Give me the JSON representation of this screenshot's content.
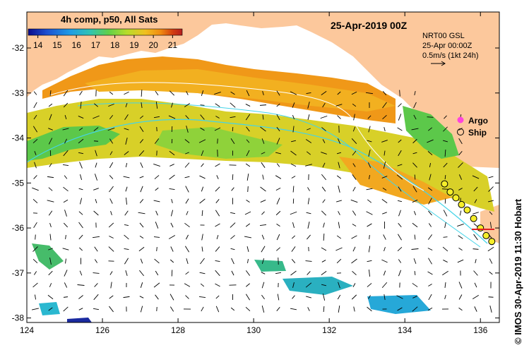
{
  "map": {
    "date_title": "25-Apr-2019 00Z",
    "product_label": "4h comp, p50, All Sats",
    "colorbar": {
      "ticks": [
        "14",
        "15",
        "16",
        "17",
        "18",
        "19",
        "20",
        "21"
      ],
      "min": 13.5,
      "max": 21.5,
      "colors": [
        "#0a0a8c",
        "#1e4fd0",
        "#1f9be6",
        "#2fc3b4",
        "#5fd04a",
        "#b6dc2a",
        "#f0c020",
        "#f08a10",
        "#d23c10",
        "#b41e1e"
      ]
    },
    "current_info": {
      "line1": "NRT00 GSL",
      "line2": "25-Apr 00:00Z",
      "line3": "0.5m/s (1kt 24h)"
    },
    "legend": {
      "argo": "Argo",
      "ship": "Ship"
    },
    "lon_ticks": [
      "124",
      "126",
      "128",
      "130",
      "132",
      "134",
      "136"
    ],
    "lat_ticks": [
      "-32",
      "-33",
      "-34",
      "-35",
      "-36",
      "-37",
      "-38"
    ],
    "lon_range": [
      124,
      136.5
    ],
    "lat_range": [
      -31.2,
      -38.1
    ],
    "credit": "© IMOS 30-Apr-2019 11:30 Hobart",
    "colors": {
      "land": "#fcc89c",
      "ocean": "#ffffff",
      "ship_marker": "#f5ee2a",
      "argo_marker": "#ff44dd"
    },
    "ship_positions": [
      {
        "lon": 135.05,
        "lat": -35.02
      },
      {
        "lon": 135.2,
        "lat": -35.2
      },
      {
        "lon": 135.35,
        "lat": -35.33
      },
      {
        "lon": 135.5,
        "lat": -35.48
      },
      {
        "lon": 135.65,
        "lat": -35.6
      },
      {
        "lon": 135.82,
        "lat": -35.79
      },
      {
        "lon": 136.0,
        "lat": -36.0
      },
      {
        "lon": 136.15,
        "lat": -36.17
      },
      {
        "lon": 136.3,
        "lat": -36.3
      }
    ]
  }
}
